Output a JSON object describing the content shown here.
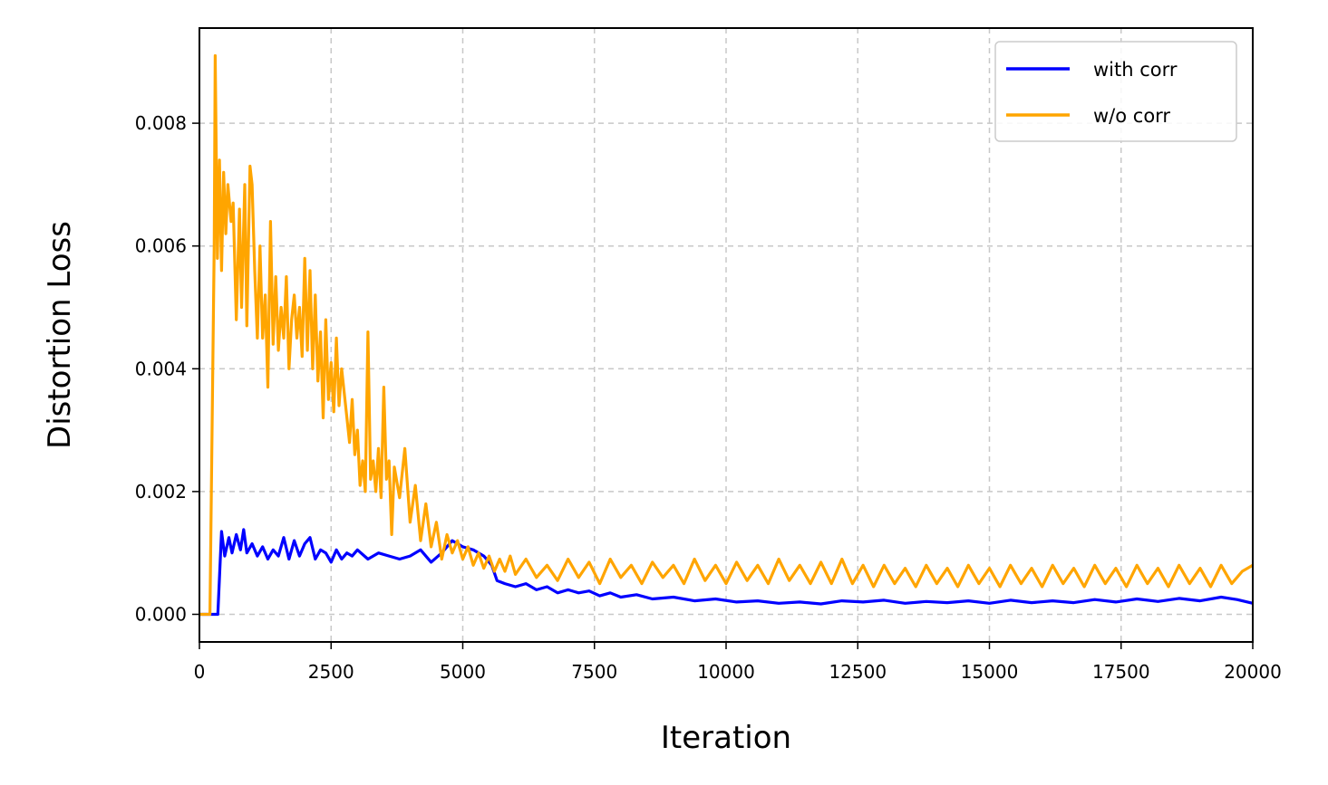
{
  "chart_data": {
    "type": "line",
    "xlabel": "Iteration",
    "ylabel": "Distortion Loss",
    "xlim": [
      0,
      20000
    ],
    "ylim": [
      -0.00045,
      0.00955
    ],
    "grid": true,
    "legend_position": "top-right",
    "x_ticks": [
      0,
      2500,
      5000,
      7500,
      10000,
      12500,
      15000,
      17500,
      20000
    ],
    "x_tick_labels": [
      "0",
      "2500",
      "5000",
      "7500",
      "10000",
      "12500",
      "15000",
      "17500",
      "20000"
    ],
    "y_ticks": [
      0,
      0.002,
      0.004,
      0.006,
      0.008
    ],
    "y_tick_labels": [
      "0.000",
      "0.002",
      "0.004",
      "0.006",
      "0.008"
    ],
    "series": [
      {
        "name": "with corr",
        "color": "#0000ff",
        "points": [
          [
            0,
            0
          ],
          [
            300,
            0
          ],
          [
            350,
            0
          ],
          [
            420,
            0.00135
          ],
          [
            480,
            0.00095
          ],
          [
            560,
            0.00125
          ],
          [
            620,
            0.001
          ],
          [
            700,
            0.0013
          ],
          [
            780,
            0.00105
          ],
          [
            840,
            0.00138
          ],
          [
            900,
            0.001
          ],
          [
            1000,
            0.00115
          ],
          [
            1100,
            0.00095
          ],
          [
            1200,
            0.0011
          ],
          [
            1300,
            0.0009
          ],
          [
            1400,
            0.00105
          ],
          [
            1500,
            0.00095
          ],
          [
            1600,
            0.00125
          ],
          [
            1700,
            0.0009
          ],
          [
            1800,
            0.0012
          ],
          [
            1900,
            0.00095
          ],
          [
            2000,
            0.00115
          ],
          [
            2100,
            0.00125
          ],
          [
            2200,
            0.0009
          ],
          [
            2300,
            0.00105
          ],
          [
            2400,
            0.001
          ],
          [
            2500,
            0.00085
          ],
          [
            2600,
            0.00105
          ],
          [
            2700,
            0.0009
          ],
          [
            2800,
            0.001
          ],
          [
            2900,
            0.00095
          ],
          [
            3000,
            0.00105
          ],
          [
            3200,
            0.0009
          ],
          [
            3400,
            0.001
          ],
          [
            3600,
            0.00095
          ],
          [
            3800,
            0.0009
          ],
          [
            4000,
            0.00095
          ],
          [
            4200,
            0.00105
          ],
          [
            4400,
            0.00085
          ],
          [
            4600,
            0.001
          ],
          [
            4800,
            0.0012
          ],
          [
            5000,
            0.0011
          ],
          [
            5200,
            0.00105
          ],
          [
            5400,
            0.00095
          ],
          [
            5550,
            0.0008
          ],
          [
            5650,
            0.00055
          ],
          [
            5800,
            0.0005
          ],
          [
            6000,
            0.00045
          ],
          [
            6200,
            0.0005
          ],
          [
            6400,
            0.0004
          ],
          [
            6600,
            0.00045
          ],
          [
            6800,
            0.00035
          ],
          [
            7000,
            0.0004
          ],
          [
            7200,
            0.00035
          ],
          [
            7400,
            0.00038
          ],
          [
            7600,
            0.0003
          ],
          [
            7800,
            0.00035
          ],
          [
            8000,
            0.00028
          ],
          [
            8300,
            0.00032
          ],
          [
            8600,
            0.00025
          ],
          [
            9000,
            0.00028
          ],
          [
            9400,
            0.00022
          ],
          [
            9800,
            0.00025
          ],
          [
            10200,
            0.0002
          ],
          [
            10600,
            0.00022
          ],
          [
            11000,
            0.00018
          ],
          [
            11400,
            0.0002
          ],
          [
            11800,
            0.00017
          ],
          [
            12200,
            0.00022
          ],
          [
            12600,
            0.0002
          ],
          [
            13000,
            0.00023
          ],
          [
            13400,
            0.00018
          ],
          [
            13800,
            0.00021
          ],
          [
            14200,
            0.00019
          ],
          [
            14600,
            0.00022
          ],
          [
            15000,
            0.00018
          ],
          [
            15400,
            0.00023
          ],
          [
            15800,
            0.00019
          ],
          [
            16200,
            0.00022
          ],
          [
            16600,
            0.00019
          ],
          [
            17000,
            0.00024
          ],
          [
            17400,
            0.0002
          ],
          [
            17800,
            0.00025
          ],
          [
            18200,
            0.00021
          ],
          [
            18600,
            0.00026
          ],
          [
            19000,
            0.00022
          ],
          [
            19400,
            0.00028
          ],
          [
            19700,
            0.00024
          ],
          [
            20000,
            0.00018
          ]
        ]
      },
      {
        "name": "w/o corr",
        "color": "#ffa500",
        "points": [
          [
            0,
            0
          ],
          [
            200,
            0
          ],
          [
            280,
            0.006
          ],
          [
            300,
            0.0091
          ],
          [
            340,
            0.0058
          ],
          [
            380,
            0.0074
          ],
          [
            420,
            0.0056
          ],
          [
            460,
            0.0072
          ],
          [
            500,
            0.0062
          ],
          [
            540,
            0.007
          ],
          [
            600,
            0.0064
          ],
          [
            640,
            0.0067
          ],
          [
            700,
            0.0048
          ],
          [
            760,
            0.0066
          ],
          [
            800,
            0.005
          ],
          [
            860,
            0.007
          ],
          [
            900,
            0.0047
          ],
          [
            960,
            0.0073
          ],
          [
            1000,
            0.007
          ],
          [
            1050,
            0.0056
          ],
          [
            1100,
            0.0045
          ],
          [
            1150,
            0.006
          ],
          [
            1200,
            0.0045
          ],
          [
            1250,
            0.0052
          ],
          [
            1300,
            0.0037
          ],
          [
            1350,
            0.0064
          ],
          [
            1400,
            0.0044
          ],
          [
            1450,
            0.0055
          ],
          [
            1500,
            0.0043
          ],
          [
            1550,
            0.005
          ],
          [
            1600,
            0.0045
          ],
          [
            1650,
            0.0055
          ],
          [
            1700,
            0.004
          ],
          [
            1750,
            0.0048
          ],
          [
            1800,
            0.0052
          ],
          [
            1850,
            0.0045
          ],
          [
            1900,
            0.005
          ],
          [
            1950,
            0.0042
          ],
          [
            2000,
            0.0058
          ],
          [
            2050,
            0.0043
          ],
          [
            2100,
            0.0056
          ],
          [
            2150,
            0.004
          ],
          [
            2200,
            0.0052
          ],
          [
            2250,
            0.0038
          ],
          [
            2300,
            0.0046
          ],
          [
            2350,
            0.0032
          ],
          [
            2400,
            0.0048
          ],
          [
            2450,
            0.0035
          ],
          [
            2500,
            0.0041
          ],
          [
            2550,
            0.0033
          ],
          [
            2600,
            0.0045
          ],
          [
            2650,
            0.0034
          ],
          [
            2700,
            0.004
          ],
          [
            2750,
            0.0036
          ],
          [
            2800,
            0.0032
          ],
          [
            2850,
            0.0028
          ],
          [
            2900,
            0.0035
          ],
          [
            2950,
            0.0026
          ],
          [
            3000,
            0.003
          ],
          [
            3050,
            0.0021
          ],
          [
            3100,
            0.0025
          ],
          [
            3150,
            0.002
          ],
          [
            3200,
            0.0046
          ],
          [
            3250,
            0.0022
          ],
          [
            3300,
            0.0025
          ],
          [
            3350,
            0.002
          ],
          [
            3400,
            0.0027
          ],
          [
            3450,
            0.0019
          ],
          [
            3500,
            0.0037
          ],
          [
            3550,
            0.0022
          ],
          [
            3600,
            0.0025
          ],
          [
            3650,
            0.0013
          ],
          [
            3700,
            0.0024
          ],
          [
            3800,
            0.0019
          ],
          [
            3900,
            0.0027
          ],
          [
            4000,
            0.0015
          ],
          [
            4100,
            0.0021
          ],
          [
            4200,
            0.0012
          ],
          [
            4300,
            0.0018
          ],
          [
            4400,
            0.0011
          ],
          [
            4500,
            0.0015
          ],
          [
            4600,
            0.0009
          ],
          [
            4700,
            0.0013
          ],
          [
            4800,
            0.001
          ],
          [
            4900,
            0.0012
          ],
          [
            5000,
            0.0009
          ],
          [
            5100,
            0.0011
          ],
          [
            5200,
            0.0008
          ],
          [
            5300,
            0.001
          ],
          [
            5400,
            0.00075
          ],
          [
            5500,
            0.00095
          ],
          [
            5600,
            0.0007
          ],
          [
            5700,
            0.0009
          ],
          [
            5800,
            0.0007
          ],
          [
            5900,
            0.00095
          ],
          [
            6000,
            0.00065
          ],
          [
            6200,
            0.0009
          ],
          [
            6400,
            0.0006
          ],
          [
            6600,
            0.0008
          ],
          [
            6800,
            0.00055
          ],
          [
            7000,
            0.0009
          ],
          [
            7200,
            0.0006
          ],
          [
            7400,
            0.00085
          ],
          [
            7600,
            0.0005
          ],
          [
            7800,
            0.0009
          ],
          [
            8000,
            0.0006
          ],
          [
            8200,
            0.0008
          ],
          [
            8400,
            0.0005
          ],
          [
            8600,
            0.00085
          ],
          [
            8800,
            0.0006
          ],
          [
            9000,
            0.0008
          ],
          [
            9200,
            0.0005
          ],
          [
            9400,
            0.0009
          ],
          [
            9600,
            0.00055
          ],
          [
            9800,
            0.0008
          ],
          [
            10000,
            0.0005
          ],
          [
            10200,
            0.00085
          ],
          [
            10400,
            0.00055
          ],
          [
            10600,
            0.0008
          ],
          [
            10800,
            0.0005
          ],
          [
            11000,
            0.0009
          ],
          [
            11200,
            0.00055
          ],
          [
            11400,
            0.0008
          ],
          [
            11600,
            0.0005
          ],
          [
            11800,
            0.00085
          ],
          [
            12000,
            0.0005
          ],
          [
            12200,
            0.0009
          ],
          [
            12400,
            0.0005
          ],
          [
            12600,
            0.0008
          ],
          [
            12800,
            0.00045
          ],
          [
            13000,
            0.0008
          ],
          [
            13200,
            0.0005
          ],
          [
            13400,
            0.00075
          ],
          [
            13600,
            0.00045
          ],
          [
            13800,
            0.0008
          ],
          [
            14000,
            0.0005
          ],
          [
            14200,
            0.00075
          ],
          [
            14400,
            0.00045
          ],
          [
            14600,
            0.0008
          ],
          [
            14800,
            0.0005
          ],
          [
            15000,
            0.00075
          ],
          [
            15200,
            0.00045
          ],
          [
            15400,
            0.0008
          ],
          [
            15600,
            0.0005
          ],
          [
            15800,
            0.00075
          ],
          [
            16000,
            0.00045
          ],
          [
            16200,
            0.0008
          ],
          [
            16400,
            0.0005
          ],
          [
            16600,
            0.00075
          ],
          [
            16800,
            0.00045
          ],
          [
            17000,
            0.0008
          ],
          [
            17200,
            0.0005
          ],
          [
            17400,
            0.00075
          ],
          [
            17600,
            0.00045
          ],
          [
            17800,
            0.0008
          ],
          [
            18000,
            0.0005
          ],
          [
            18200,
            0.00075
          ],
          [
            18400,
            0.00045
          ],
          [
            18600,
            0.0008
          ],
          [
            18800,
            0.0005
          ],
          [
            19000,
            0.00075
          ],
          [
            19200,
            0.00045
          ],
          [
            19400,
            0.0008
          ],
          [
            19600,
            0.0005
          ],
          [
            19800,
            0.0007
          ],
          [
            20000,
            0.0008
          ]
        ]
      }
    ]
  }
}
